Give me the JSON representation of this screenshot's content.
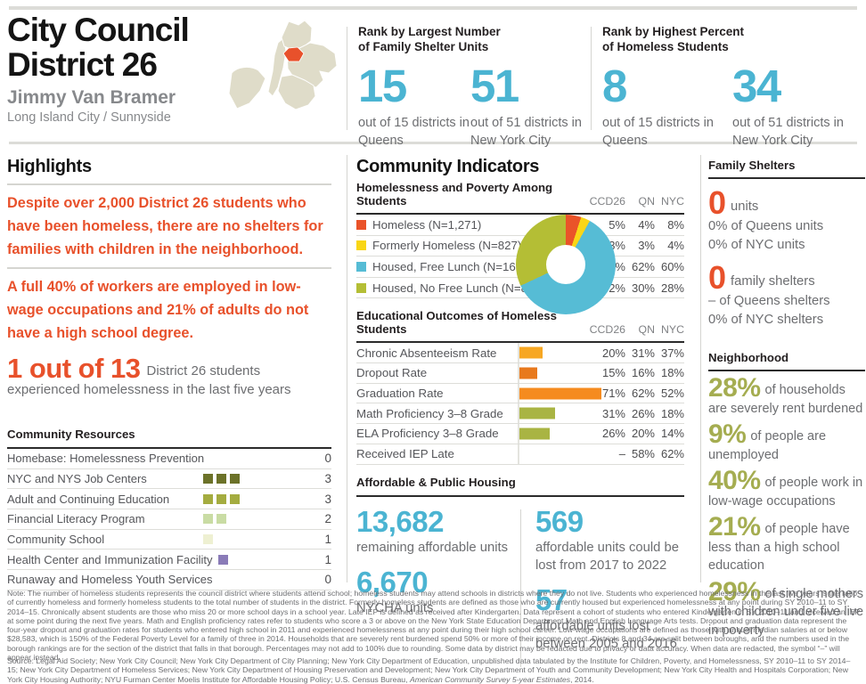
{
  "header": {
    "title_line1": "City Council",
    "title_line2": "District 26",
    "member": "Jimmy Van Bramer",
    "area": "Long Island City / Sunnyside",
    "map": "nyc-boroughs-map-with-district-26-highlighted"
  },
  "ranks": [
    {
      "heading_line1": "Rank by Largest Number",
      "heading_line2": "of Family Shelter Units",
      "stats": [
        {
          "value": "15",
          "caption": "out of 15 districts in Queens"
        },
        {
          "value": "51",
          "caption": "out of 51 districts in New York City"
        }
      ]
    },
    {
      "heading_line1": "Rank by Highest Percent",
      "heading_line2": "of Homeless Students",
      "stats": [
        {
          "value": "8",
          "caption": "out of 15 districts in Queens"
        },
        {
          "value": "34",
          "caption": "out of 51 districts in New York City"
        }
      ]
    }
  ],
  "highlights": {
    "title": "Highlights",
    "paragraph1": "Despite over 2,000 District 26 students who have been homeless, there are no shelters for families with children in the neighborhood.",
    "paragraph2": "A full 40% of workers are employed in low-wage occupations and 21% of adults do not have a high school degree.",
    "stat_value": "1 out of 13",
    "stat_caption": "District 26 students experienced homelessness in the last five years"
  },
  "community_resources": {
    "title": "Community Resources",
    "rows": [
      {
        "label": "Homebase: Homelessness Prevention",
        "count": 0,
        "square_color": ""
      },
      {
        "label": "NYC and NYS Job Centers",
        "count": 3,
        "square_color": "#6C7229"
      },
      {
        "label": "Adult and Continuing Education",
        "count": 3,
        "square_color": "#A4AC40"
      },
      {
        "label": "Financial Literacy Program",
        "count": 2,
        "square_color": "#C9DCA4"
      },
      {
        "label": "Community School",
        "count": 1,
        "square_color": "#EEF0D2"
      },
      {
        "label": "Health Center and Immunization Facility",
        "count": 1,
        "square_color": "#8A7BB8"
      },
      {
        "label": "Runaway and Homeless Youth Services",
        "count": 0,
        "square_color": ""
      }
    ]
  },
  "indicators_title": "Community Indicators",
  "chart_data": [
    {
      "type": "pie",
      "title": "Homelessness and Poverty Among Students",
      "columns": [
        "CCD26",
        "QN",
        "NYC"
      ],
      "legend_position": "left",
      "slices": [
        {
          "label": "Homeless (N=1,271)",
          "value": 5,
          "color": "#EA5329",
          "ccd26": "5%",
          "qn": "4%",
          "nyc": "8%"
        },
        {
          "label": "Formerly Homeless (N=827)",
          "value": 3,
          "color": "#F9D616",
          "ccd26": "3%",
          "qn": "3%",
          "nyc": "4%"
        },
        {
          "label": "Housed, Free Lunch (N=16,044)",
          "value": 60,
          "color": "#56BCD5",
          "ccd26": "60%",
          "qn": "62%",
          "nyc": "60%"
        },
        {
          "label": "Housed, No Free Lunch (N=8,602)",
          "value": 32,
          "color": "#B4BE35",
          "ccd26": "32%",
          "qn": "30%",
          "nyc": "28%"
        }
      ]
    },
    {
      "type": "bar",
      "title": "Educational Outcomes of Homeless Students",
      "columns": [
        "CCD26",
        "QN",
        "NYC"
      ],
      "xlim": [
        0,
        100
      ],
      "rows": [
        {
          "label": "Chronic Absenteeism Rate",
          "value": 20,
          "color": "#F7A723",
          "ccd26": "20%",
          "qn": "31%",
          "nyc": "37%"
        },
        {
          "label": "Dropout Rate",
          "value": 15,
          "color": "#E8791D",
          "ccd26": "15%",
          "qn": "16%",
          "nyc": "18%"
        },
        {
          "label": "Graduation Rate",
          "value": 71,
          "color": "#F58B1F",
          "ccd26": "71%",
          "qn": "62%",
          "nyc": "52%"
        },
        {
          "label": "Math Proficiency 3–8 Grade",
          "value": 31,
          "color": "#A9B443",
          "ccd26": "31%",
          "qn": "26%",
          "nyc": "18%"
        },
        {
          "label": "ELA Proficiency 3–8 Grade",
          "value": 26,
          "color": "#A9B443",
          "ccd26": "26%",
          "qn": "20%",
          "nyc": "14%"
        },
        {
          "label": "Received IEP Late",
          "value": null,
          "color": "",
          "ccd26": "–",
          "qn": "58%",
          "nyc": "62%"
        }
      ]
    }
  ],
  "housing": {
    "title": "Affordable & Public Housing",
    "stats_left": [
      {
        "value": "13,682",
        "caption": "remaining affordable units"
      },
      {
        "value": "6,670",
        "caption": "NYCHA units"
      }
    ],
    "stats_right": [
      {
        "value": "569",
        "caption": "affordable units could be lost from 2017 to 2022"
      },
      {
        "value": "57",
        "caption": "affordable units lost between 2005 and 2016"
      }
    ]
  },
  "family_shelters": {
    "title": "Family Shelters",
    "stats": [
      {
        "value": "0",
        "label": "units",
        "line1": "0% of Queens units",
        "line2": "0% of NYC units"
      },
      {
        "value": "0",
        "label": "family shelters",
        "line1": "– of Queens shelters",
        "line2": "0% of NYC shelters"
      }
    ]
  },
  "neighborhood": {
    "title": "Neighborhood",
    "stats": [
      {
        "value": "28%",
        "text": "of households are severely rent burdened"
      },
      {
        "value": "9%",
        "text": "of people are unemployed"
      },
      {
        "value": "40%",
        "text": "of people work in low-wage occupations"
      },
      {
        "value": "21%",
        "text": "of people have less than a high school education"
      },
      {
        "value": "29%",
        "text": "of single mothers with children under five live in poverty"
      }
    ]
  },
  "footer": {
    "note": "Note: The number of homeless students represents the council district where students attend school; homeless students may attend schools in districts where they do not live. Students who experienced homelessness in the last five years is the ratio of currently homeless and formerly homeless students to the total number of students in the district. Formerly homeless students are defined as those who are currently housed but experienced homelessness at any point during SY 2010–11 to SY 2014–15. Chronically absent students are those who miss 20 or more school days in a school year. Late IEP is defined as received after Kindergarten. Data represent a cohort of students who entered Kindergarten in SY 2010–11 and received an IEP at some point during the next five years. Math and English proficiency rates refer to students who score a 3 or above on the New York State Education Department Math and English Language Arts tests. Dropout and graduation data represent the four-year dropout and graduation rates for students who entered high school in 2011 and experienced homelessness at any point during their high school career. Low-wage occupations are defined as those with annual median salaries at or below $28,583, which is 150% of the Federal Poverty Level for a family of three in 2014. Households that are severely rent burdened spend 50% or more of their income on rent. Districts 8 and 34 are split between boroughs, and the numbers used in the borough rankings are for the section of the district that falls in that borough. Percentages may not add to 100% due to rounding. Some data by district may be redacted due to privacy or data accuracy. When data are redacted, the symbol “–” will appear instead.",
    "source_prefix": "Source: Legal Aid Society; New York City Council; New York City Department of City Planning; New York City Department of Education, unpublished data tabulated by the Institute for Children, Poverty, and Homelessness, SY 2010–11 to SY 2014–15; New York City Department of Homeless Services; New York City Department of Housing Preservation and Development; New York City Department of Youth and Community Development; New York City Health and Hospitals Corporation; New York City Housing Authority; NYU Furman Center Moelis Institute for Affordable Housing Policy; U.S. Census Bureau, ",
    "source_italic": "American Community Survey 5-year Estimates",
    "source_suffix": ", 2014."
  },
  "colors": {
    "accent_blue": "#4BB4D2",
    "accent_orange": "#E8512B",
    "accent_olive": "#A5AD51",
    "map_land": "#DFDCC9",
    "rule_light": "#D5D5D1",
    "rule_dark": "#2B2B2B",
    "text_gray": "#6D6E71"
  }
}
